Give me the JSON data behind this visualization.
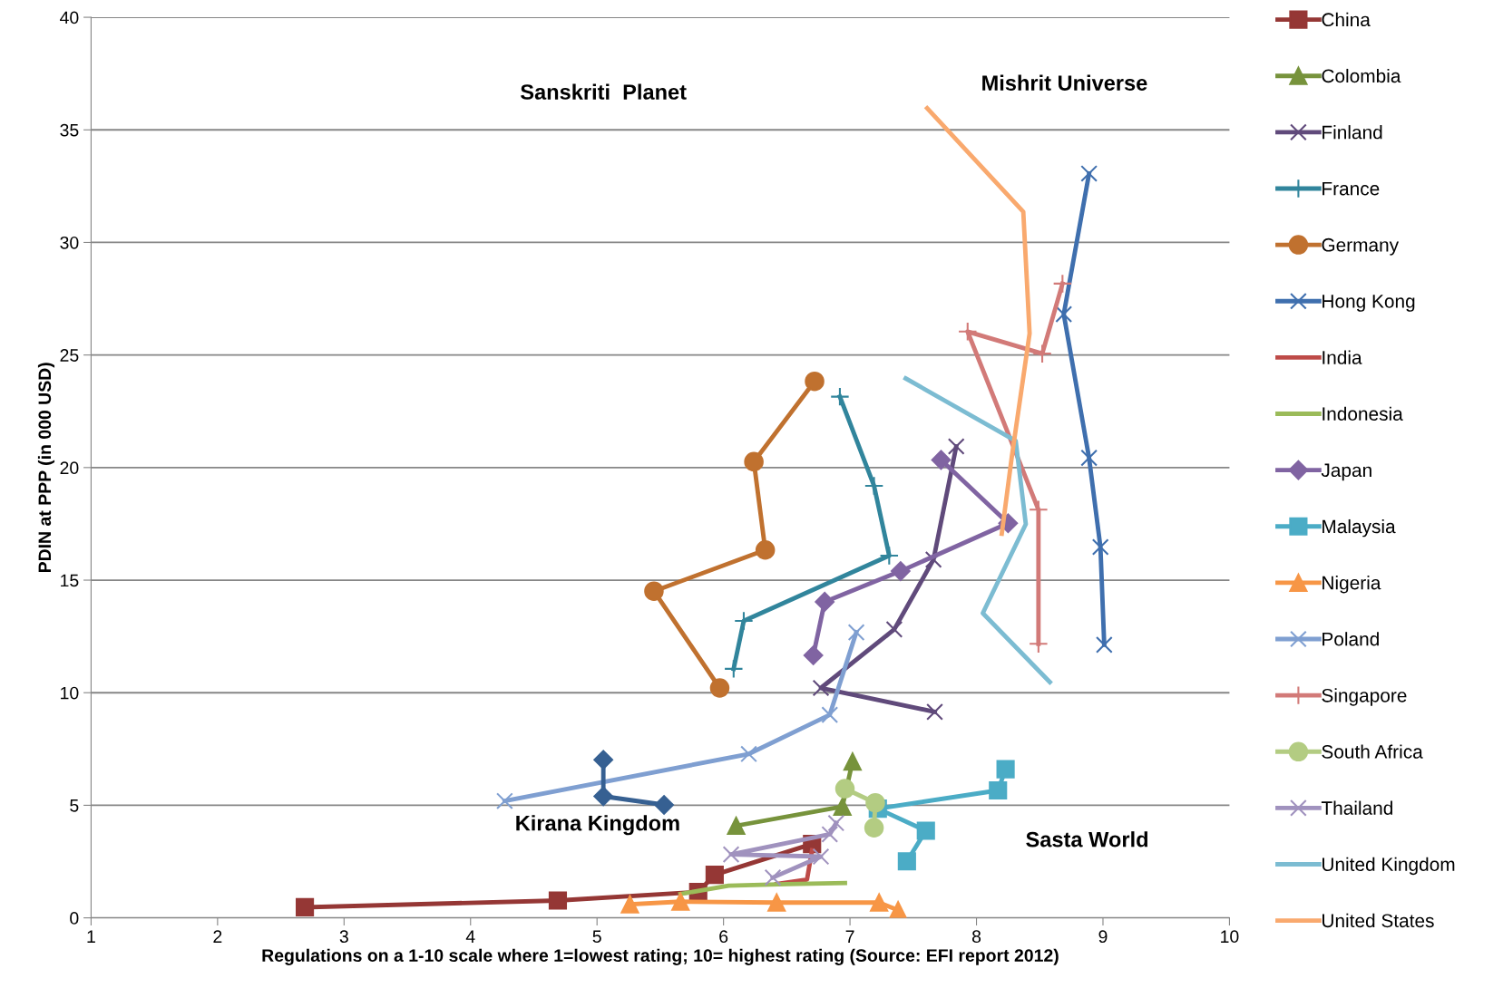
{
  "chart_data": {
    "type": "line",
    "xlabel": "Regulations on a 1-10 scale where 1=lowest rating; 10= highest rating (Source: EFI report 2012)",
    "ylabel": "PDIN at PPP (in 000 USD)",
    "xlim": [
      1,
      10
    ],
    "xticks": [
      1,
      2,
      3,
      4,
      5,
      6,
      7,
      8,
      9,
      10
    ],
    "ylim": [
      0,
      40
    ],
    "yticks": [
      0,
      5,
      10,
      15,
      20,
      25,
      30,
      35,
      40
    ],
    "grid": "y",
    "legend": "right",
    "line_style": "solid",
    "annotations": [
      "Sanskriti  Planet",
      "Mishrit Universe",
      "Kirana Kingdom",
      "Sasta World"
    ],
    "series": [
      {
        "name": "China",
        "color": "#953735",
        "marker": "square",
        "x": [
          2.69,
          4.69,
          5.8,
          5.93,
          6.7
        ],
        "values": [
          0.47,
          0.77,
          1.15,
          1.91,
          3.28
        ]
      },
      {
        "name": "Colombia",
        "color": "#77933c",
        "marker": "triangle",
        "x": [
          6.1,
          6.94,
          7.02
        ],
        "values": [
          4.09,
          4.94,
          6.94
        ]
      },
      {
        "name": "Finland",
        "color": "#604a7b",
        "marker": "cross",
        "x": [
          7.67,
          6.77,
          7.35,
          7.66,
          7.84
        ],
        "values": [
          9.15,
          10.21,
          12.81,
          15.91,
          20.94
        ]
      },
      {
        "name": "France",
        "color": "#31859c",
        "marker": "star",
        "x": [
          6.08,
          6.16,
          7.31,
          7.19,
          6.92
        ],
        "values": [
          11.06,
          13.19,
          16.09,
          19.19,
          23.15
        ]
      },
      {
        "name": "Germany",
        "color": "#c0712f",
        "marker": "circle",
        "x": [
          5.97,
          5.45,
          6.33,
          6.24,
          6.72
        ],
        "values": [
          10.21,
          14.51,
          16.34,
          20.26,
          23.83
        ]
      },
      {
        "name": "Hong Kong",
        "color": "#3f6fae",
        "marker": "cross",
        "x": [
          9.01,
          8.98,
          8.89,
          8.69,
          8.89
        ],
        "values": [
          12.13,
          16.47,
          20.43,
          26.81,
          33.06
        ]
      },
      {
        "name": "India",
        "color": "#be4b48",
        "marker": "none",
        "x": [
          6.7,
          6.66,
          6.42
        ],
        "values": [
          3.0,
          1.7,
          1.5
        ]
      },
      {
        "name": "Indonesia",
        "color": "#9bbb59",
        "marker": "none",
        "x": [
          5.66,
          6.04,
          6.5,
          6.96
        ],
        "values": [
          1.06,
          1.43,
          1.5,
          1.55
        ]
      },
      {
        "name": "Japan",
        "color": "#8064a2",
        "marker": "diamond",
        "x": [
          6.71,
          6.8,
          7.4,
          8.25,
          7.72
        ],
        "values": [
          11.66,
          14.04,
          15.4,
          17.53,
          20.34
        ]
      },
      {
        "name": "Malaysia",
        "color": "#4bacc6",
        "marker": "square",
        "x": [
          8.23,
          8.17,
          7.22,
          7.6,
          7.45
        ],
        "values": [
          6.6,
          5.66,
          4.85,
          3.87,
          2.51
        ]
      },
      {
        "name": "Nigeria",
        "color": "#f79646",
        "marker": "triangle",
        "x": [
          5.26,
          5.66,
          6.42,
          7.23,
          7.38
        ],
        "values": [
          0.6,
          0.72,
          0.68,
          0.68,
          0.34
        ]
      },
      {
        "name": "Poland",
        "color": "#7f9fd1",
        "marker": "cross",
        "x": [
          4.27,
          6.2,
          6.84,
          7.05
        ],
        "values": [
          5.19,
          7.28,
          9.02,
          12.68
        ]
      },
      {
        "name": "Singapore",
        "color": "#d27a78",
        "marker": "star",
        "x": [
          8.49,
          8.49,
          7.93,
          8.52,
          8.68
        ],
        "values": [
          12.17,
          18.13,
          26.04,
          25.06,
          28.17
        ]
      },
      {
        "name": "South Africa",
        "color": "#b3cc82",
        "marker": "circle",
        "x": [
          6.96,
          7.2,
          7.19
        ],
        "values": [
          5.74,
          5.11,
          4.0
        ]
      },
      {
        "name": "Thailand",
        "color": "#a092be",
        "marker": "cross",
        "x": [
          6.89,
          6.84,
          6.06,
          6.77,
          6.39
        ],
        "values": [
          4.21,
          3.71,
          2.82,
          2.72,
          1.79
        ]
      },
      {
        "name": "United Kingdom",
        "color": "#7cbcd2",
        "marker": "none",
        "x": [
          7.44,
          8.31,
          8.39,
          8.05,
          8.58
        ],
        "values": [
          23.96,
          21.19,
          17.49,
          13.53,
          10.47
        ]
      },
      {
        "name": "United States",
        "color": "#f9a96e",
        "marker": "none",
        "x": [
          7.61,
          8.37,
          8.42,
          8.28,
          8.2
        ],
        "values": [
          35.96,
          31.36,
          25.96,
          20.51,
          17.06
        ]
      },
      {
        "color": "#366092",
        "marker": "diamond",
        "x": [
          5.05,
          5.05,
          5.53
        ],
        "values": [
          7.02,
          5.4,
          5.02
        ]
      }
    ]
  }
}
